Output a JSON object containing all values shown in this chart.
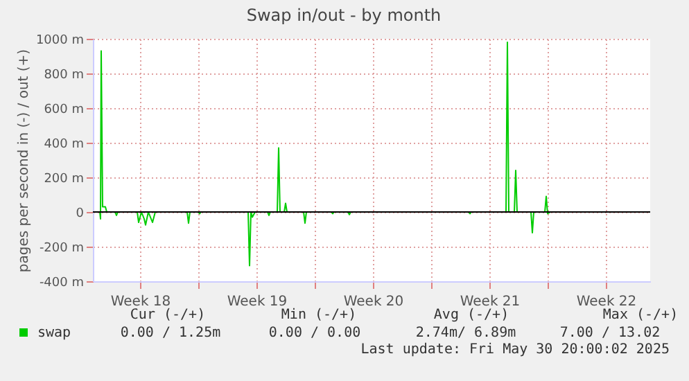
{
  "chart_data": {
    "type": "line",
    "title": "Swap in/out - by month",
    "ylabel": "pages per second in (-) / out (+)",
    "x": [
      "2025-04-27T16:00",
      "2025-04-28T02:00",
      "2025-04-28T03:00",
      "2025-04-28T04:00",
      "2025-04-28T06:00",
      "2025-04-28T10:00",
      "2025-04-28T12:00",
      "2025-04-29T00:00",
      "2025-04-29T02:00",
      "2025-04-29T04:00",
      "2025-04-30T08:00",
      "2025-04-30T10:00",
      "2025-04-30T14:00",
      "2025-04-30T18:00",
      "2025-04-30T20:00",
      "2025-05-01T00:00",
      "2025-05-01T06:00",
      "2025-05-01T10:00",
      "2025-05-03T08:00",
      "2025-05-03T10:00",
      "2025-05-03T12:00",
      "2025-05-04T00:00",
      "2025-05-04T02:00",
      "2025-05-04T04:00",
      "2025-05-07T00:00",
      "2025-05-07T02:00",
      "2025-05-07T04:00",
      "2025-05-07T06:00",
      "2025-05-07T10:00",
      "2025-05-08T04:00",
      "2025-05-08T06:00",
      "2025-05-08T08:00",
      "2025-05-08T18:00",
      "2025-05-08T20:00",
      "2025-05-08T22:00",
      "2025-05-09T04:00",
      "2025-05-09T06:00",
      "2025-05-09T08:00",
      "2025-05-10T08:00",
      "2025-05-10T10:00",
      "2025-05-10T12:00",
      "2025-05-12T00:00",
      "2025-05-12T02:00",
      "2025-05-12T04:00",
      "2025-05-13T00:00",
      "2025-05-13T02:00",
      "2025-05-13T04:00",
      "2025-05-20T06:00",
      "2025-05-20T08:00",
      "2025-05-20T10:00",
      "2025-05-22T12:00",
      "2025-05-22T14:00",
      "2025-05-22T16:00",
      "2025-05-23T00:00",
      "2025-05-23T02:00",
      "2025-05-23T04:00",
      "2025-05-24T00:00",
      "2025-05-24T02:00",
      "2025-05-24T04:00",
      "2025-05-24T20:00",
      "2025-05-24T22:00",
      "2025-05-25T00:00",
      "2025-05-25T04:00",
      "2025-05-31T00:00"
    ],
    "series": [
      {
        "name": "swap",
        "color": "#00cc00",
        "values": [
          0,
          0,
          -40,
          930,
          30,
          30,
          0,
          0,
          -20,
          0,
          0,
          -60,
          0,
          -40,
          -75,
          0,
          -60,
          0,
          0,
          -65,
          0,
          0,
          -10,
          0,
          0,
          -310,
          0,
          -30,
          0,
          0,
          -20,
          0,
          0,
          370,
          0,
          0,
          50,
          0,
          0,
          -65,
          0,
          0,
          -10,
          0,
          0,
          -15,
          0,
          0,
          -10,
          0,
          0,
          980,
          0,
          0,
          240,
          0,
          0,
          -120,
          0,
          0,
          90,
          -10,
          0,
          0
        ]
      }
    ],
    "xlim": [
      "2025-04-27T16:00",
      "2025-05-31T04:00"
    ],
    "xticks": [
      {
        "value": "2025-04-30T12:00",
        "label": "Week 18"
      },
      {
        "value": "2025-05-04T00:00",
        "label": null
      },
      {
        "value": "2025-05-07T12:00",
        "label": "Week 19"
      },
      {
        "value": "2025-05-11T00:00",
        "label": null
      },
      {
        "value": "2025-05-14T12:00",
        "label": "Week 20"
      },
      {
        "value": "2025-05-18T00:00",
        "label": null
      },
      {
        "value": "2025-05-21T12:00",
        "label": "Week 21"
      },
      {
        "value": "2025-05-25T00:00",
        "label": null
      },
      {
        "value": "2025-05-28T12:00",
        "label": "Week 22"
      }
    ],
    "ylim": [
      -400,
      1000
    ],
    "yticks": [
      {
        "value": -400,
        "label": "-400 m"
      },
      {
        "value": -200,
        "label": "-200 m"
      },
      0,
      {
        "value": 200,
        "label": "200 m"
      },
      {
        "value": 400,
        "label": "400 m"
      },
      {
        "value": 600,
        "label": "600 m"
      },
      {
        "value": 800,
        "label": "800 m"
      },
      {
        "value": 1000,
        "label": "1000 m"
      }
    ],
    "ref_lines": [
      {
        "axis": "y",
        "value": 0,
        "color": "#000000"
      }
    ],
    "grid": true,
    "legend": "bottom",
    "annotations": [
      "Cur (-/+)",
      "Min (-/+)",
      "Avg (-/+)",
      "Max (-/+)",
      "0.00 /   1.25m",
      "0.00 /  0.00",
      "2.74m/  6.89m",
      "7.00 / 13.02",
      "Last update: Fri May 30 20:00:02 2025"
    ]
  }
}
